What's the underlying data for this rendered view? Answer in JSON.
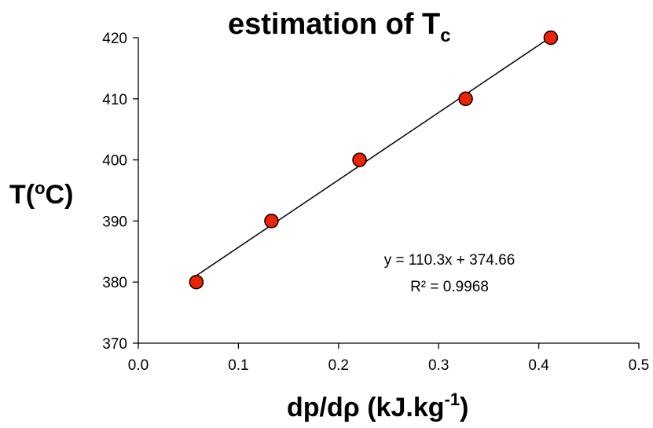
{
  "chart_data": {
    "type": "scatter",
    "title": "estimation of  T",
    "title_subscript": "c",
    "xlabel": "dp/dρ (kJ.kg",
    "xlabel_superscript": "-1",
    "xlabel_suffix": ")",
    "ylabel": "T(",
    "ylabel_superscript": "o",
    "ylabel_suffix": "C)",
    "xlim": [
      0.0,
      0.5
    ],
    "ylim": [
      370,
      420
    ],
    "x_ticks": [
      0.0,
      0.1,
      0.2,
      0.3,
      0.4,
      0.5
    ],
    "x_tick_labels": [
      "0.0",
      "0.1",
      "0.2",
      "0.3",
      "0.4",
      "0.5"
    ],
    "y_ticks": [
      370,
      380,
      390,
      400,
      410,
      420
    ],
    "y_tick_labels": [
      "370",
      "380",
      "390",
      "400",
      "410",
      "420"
    ],
    "grid": false,
    "legend": "none",
    "series": [
      {
        "x": [
          0.058,
          0.133,
          0.221,
          0.327,
          0.412
        ],
        "y": [
          380,
          390,
          400,
          410,
          420
        ],
        "marker_color": "#ee2200"
      }
    ],
    "trendline": {
      "slope": 110.3,
      "intercept": 374.66,
      "equation": "y = 110.3x + 374.66",
      "r_squared": "R² = 0.9968"
    }
  }
}
